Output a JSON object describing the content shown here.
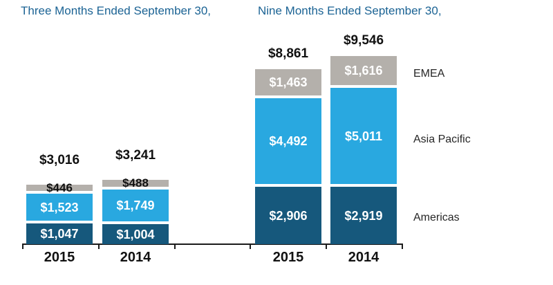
{
  "colors": {
    "title_text": "#1B6394",
    "americas": "#16587C",
    "asia_pacific": "#29A8E0",
    "emea": "#B4B0AB",
    "label_dark": "#111111",
    "label_light": "#FFFFFF",
    "axis": "#1A1A1A",
    "legend_text": "#262626"
  },
  "legend": [
    "EMEA",
    "Asia Pacific",
    "Americas"
  ],
  "chart_data": {
    "type": "bar",
    "stacked": true,
    "value_prefix": "$",
    "gridlines": false,
    "legend_position": "right",
    "groups": [
      {
        "title": "Three Months Ended September 30,",
        "categories": [
          "2015",
          "2014"
        ],
        "series": [
          {
            "name": "Americas",
            "color_key": "americas",
            "values": [
              1047,
              1004
            ]
          },
          {
            "name": "Asia Pacific",
            "color_key": "asia_pacific",
            "values": [
              1523,
              1749
            ]
          },
          {
            "name": "EMEA",
            "color_key": "emea",
            "values": [
              446,
              488
            ]
          }
        ],
        "totals": [
          3016,
          3241
        ]
      },
      {
        "title": "Nine Months Ended September 30,",
        "categories": [
          "2015",
          "2014"
        ],
        "series": [
          {
            "name": "Americas",
            "color_key": "americas",
            "values": [
              2906,
              2919
            ]
          },
          {
            "name": "Asia Pacific",
            "color_key": "asia_pacific",
            "values": [
              4492,
              5011
            ]
          },
          {
            "name": "EMEA",
            "color_key": "emea",
            "values": [
              1463,
              1616
            ]
          }
        ],
        "totals": [
          8861,
          9546
        ]
      }
    ]
  }
}
